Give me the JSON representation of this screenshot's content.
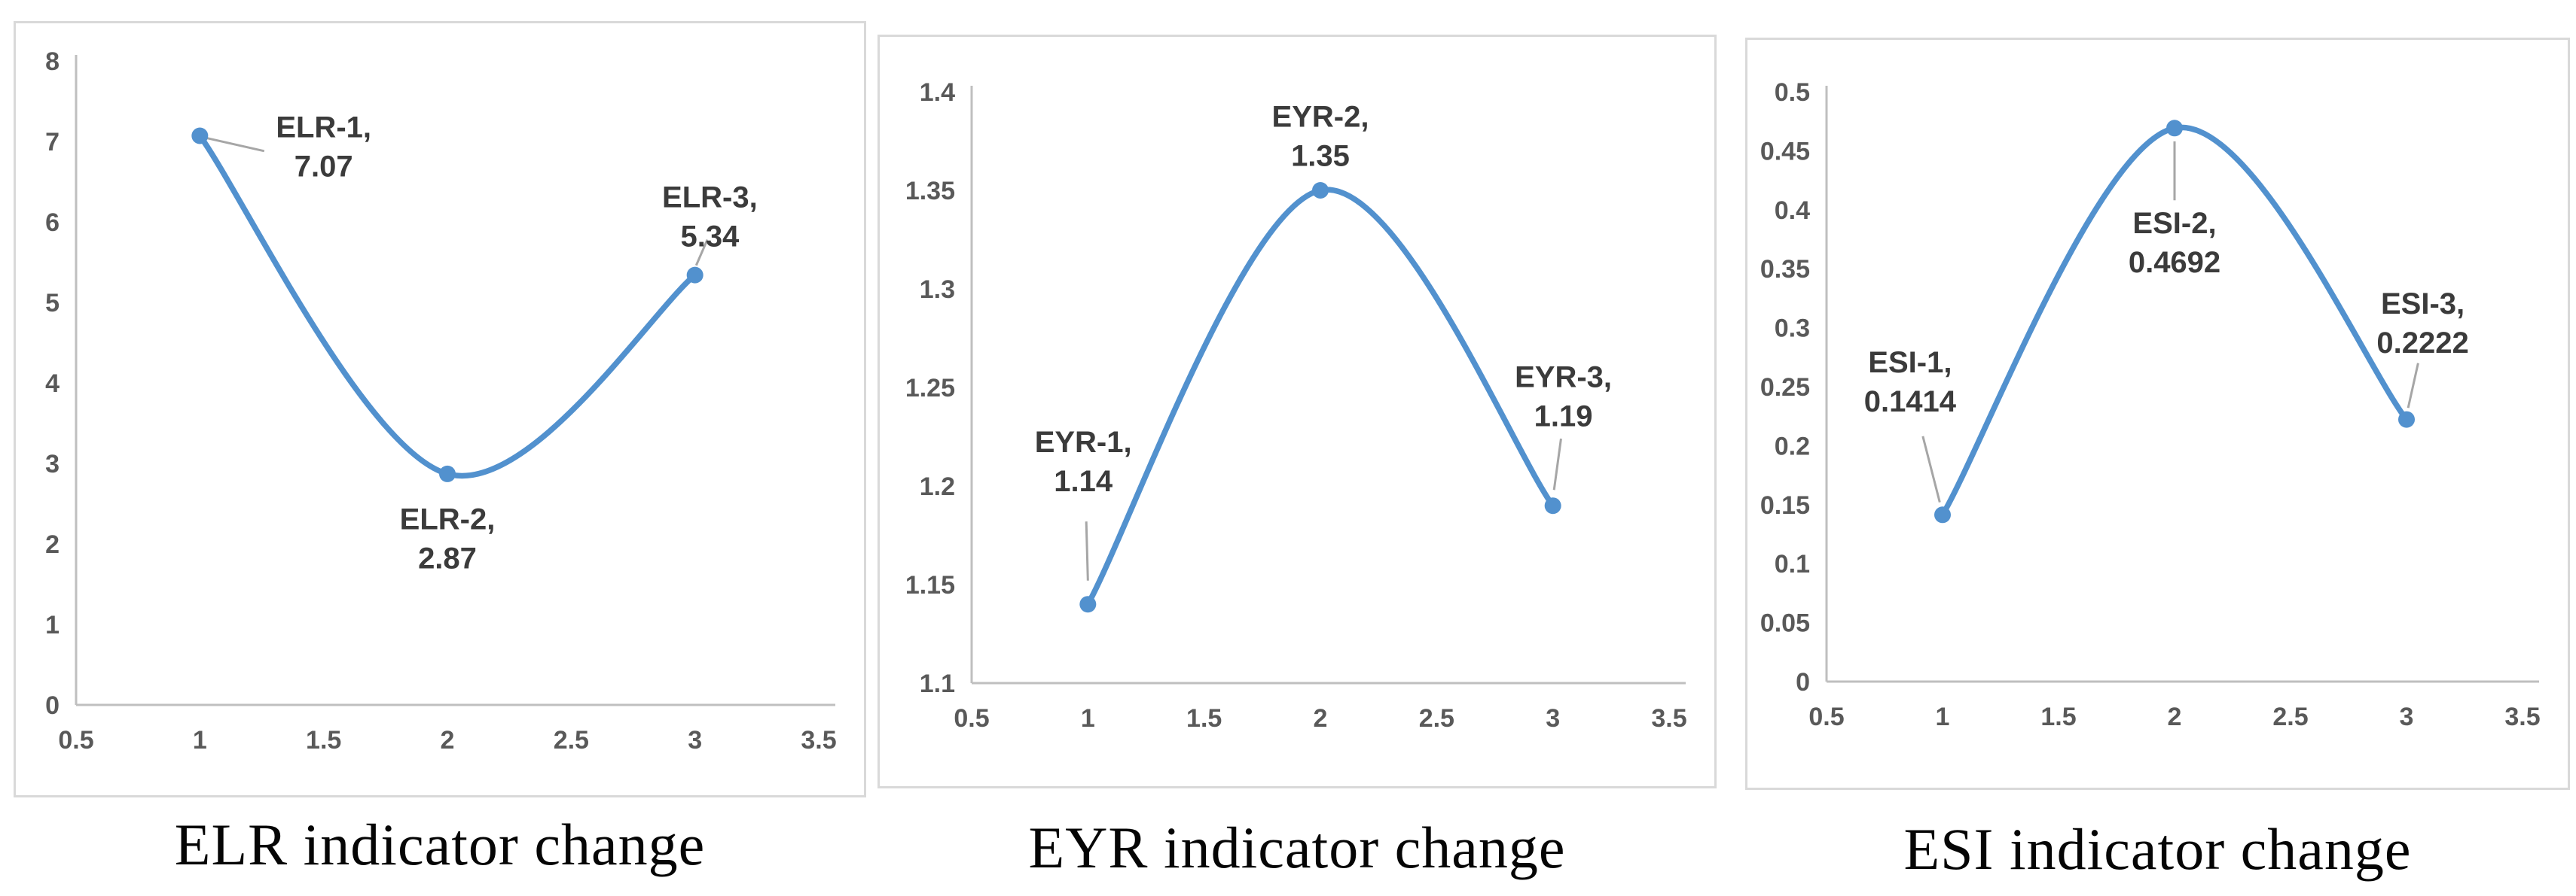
{
  "colors": {
    "line": "#5291CE",
    "marker": "#5291CE",
    "axis_line": "#bfbfbf",
    "tick_text": "#595959",
    "label_text": "#3b3b3b",
    "leader_line": "#a6a6a6",
    "panel_border": "#d9d9d9"
  },
  "chart_data": [
    {
      "type": "line",
      "title": "ELR indicator change",
      "series": [
        {
          "name": "ELR",
          "x": [
            1,
            2,
            3
          ],
          "y": [
            7.07,
            2.87,
            5.34
          ]
        }
      ],
      "xlim": [
        0.5,
        3.5
      ],
      "ylim": [
        0,
        8
      ],
      "xticks": [
        "0.5",
        "1",
        "1.5",
        "2",
        "2.5",
        "3",
        "3.5"
      ],
      "yticks": [
        "0",
        "1",
        "2",
        "3",
        "4",
        "5",
        "6",
        "7",
        "8"
      ],
      "grid": false,
      "legend_position": "none",
      "point_labels": [
        {
          "lines": [
            "ELR-1,",
            "7.07"
          ],
          "at": [
            1.5,
            6.95
          ],
          "leader": [
            [
              1.03,
              7.04
            ],
            [
              1.26,
              6.88
            ]
          ]
        },
        {
          "lines": [
            "ELR-2,",
            "2.87"
          ],
          "at": [
            2.0,
            2.08
          ],
          "leader": null
        },
        {
          "lines": [
            "ELR-3,",
            "5.34"
          ],
          "at": [
            3.06,
            6.08
          ],
          "leader": [
            [
              3.005,
              5.46
            ],
            [
              3.05,
              5.78
            ]
          ]
        }
      ]
    },
    {
      "type": "line",
      "title": "EYR indicator change",
      "series": [
        {
          "name": "EYR",
          "x": [
            1,
            2,
            3
          ],
          "y": [
            1.14,
            1.35,
            1.19
          ]
        }
      ],
      "xlim": [
        0.5,
        3.5
      ],
      "ylim": [
        1.1,
        1.4
      ],
      "xticks": [
        "0.5",
        "1",
        "1.5",
        "2",
        "2.5",
        "3",
        "3.5"
      ],
      "yticks": [
        "1.1",
        "1.15",
        "1.2",
        "1.25",
        "1.3",
        "1.35",
        "1.4"
      ],
      "grid": false,
      "legend_position": "none",
      "point_labels": [
        {
          "lines": [
            "EYR-1,",
            "1.14"
          ],
          "at": [
            0.98,
            1.213
          ],
          "leader": [
            [
              0.993,
              1.182
            ],
            [
              1.0,
              1.152
            ]
          ]
        },
        {
          "lines": [
            "EYR-2,",
            "1.35"
          ],
          "at": [
            2.0,
            1.378
          ],
          "leader": null
        },
        {
          "lines": [
            "EYR-3,",
            "1.19"
          ],
          "at": [
            3.045,
            1.246
          ],
          "leader": [
            [
              3.005,
              1.198
            ],
            [
              3.035,
              1.224
            ]
          ]
        }
      ]
    },
    {
      "type": "line",
      "title": "ESI indicator change",
      "series": [
        {
          "name": "ESI",
          "x": [
            1,
            2,
            3
          ],
          "y": [
            0.1414,
            0.4692,
            0.2222
          ]
        }
      ],
      "xlim": [
        0.5,
        3.5
      ],
      "ylim": [
        0,
        0.5
      ],
      "xticks": [
        "0.5",
        "1",
        "1.5",
        "2",
        "2.5",
        "3",
        "3.5"
      ],
      "yticks": [
        "0",
        "0.05",
        "0.1",
        "0.15",
        "0.2",
        "0.25",
        "0.3",
        "0.35",
        "0.4",
        "0.45",
        "0.5"
      ],
      "grid": false,
      "legend_position": "none",
      "point_labels": [
        {
          "lines": [
            "ESI-1,",
            "0.1414"
          ],
          "at": [
            0.86,
            0.255
          ],
          "leader": [
            [
              0.915,
              0.208
            ],
            [
              0.988,
              0.152
            ]
          ]
        },
        {
          "lines": [
            "ESI-2,",
            "0.4692"
          ],
          "at": [
            2.0,
            0.373
          ],
          "leader": [
            [
              2.0,
              0.458
            ],
            [
              2.0,
              0.408
            ]
          ]
        },
        {
          "lines": [
            "ESI-3,",
            "0.2222"
          ],
          "at": [
            3.07,
            0.305
          ],
          "leader": [
            [
              3.007,
              0.232
            ],
            [
              3.05,
              0.27
            ]
          ]
        }
      ]
    }
  ]
}
